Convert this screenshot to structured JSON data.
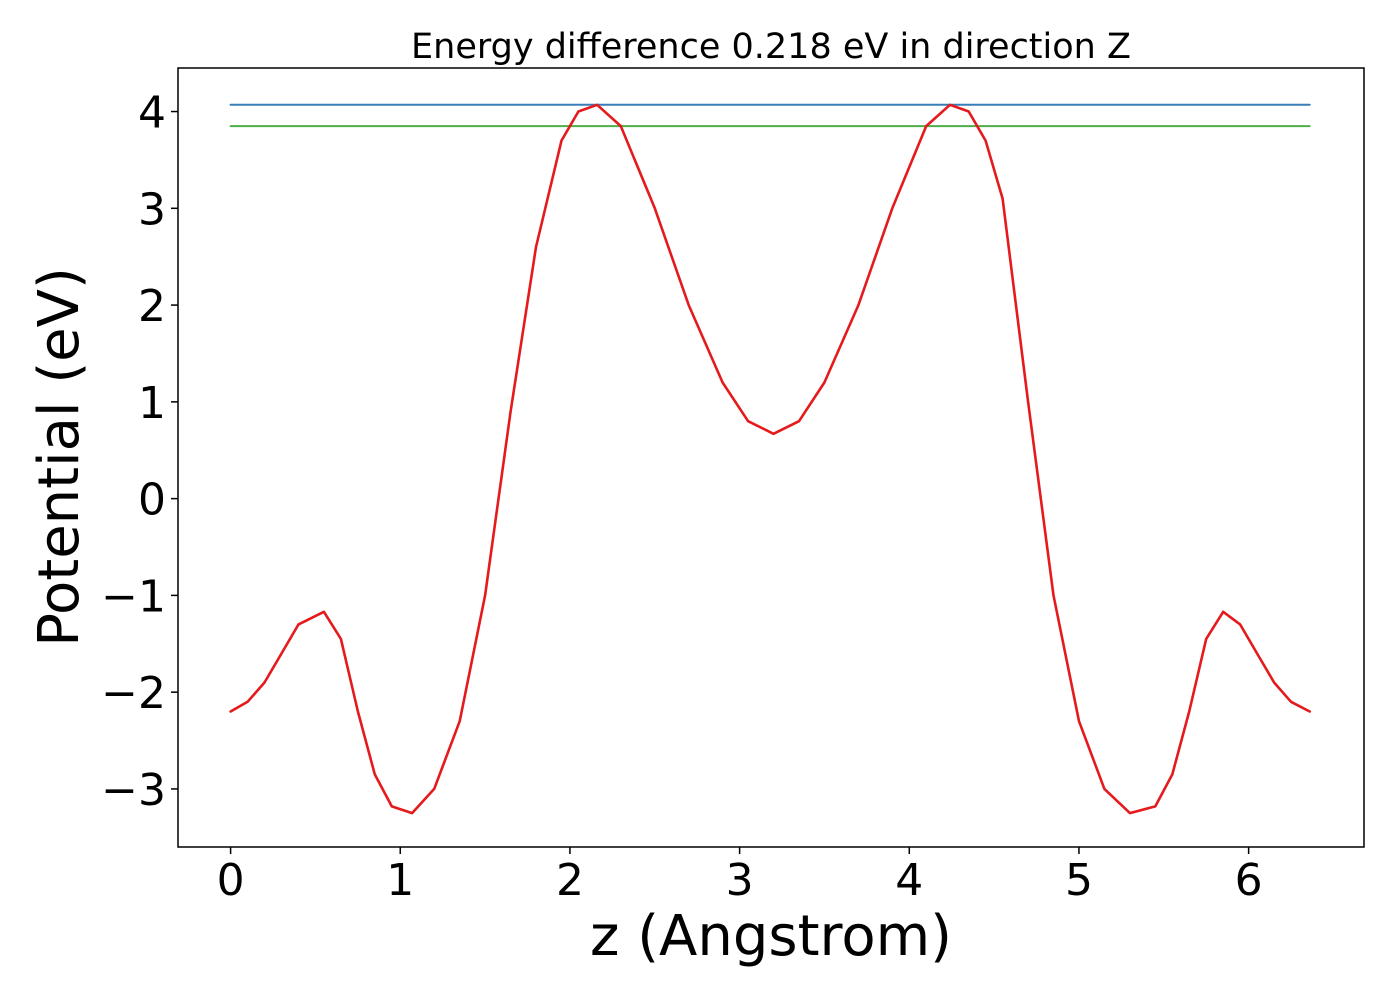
{
  "chart_data": {
    "type": "line",
    "title": "Energy difference 0.218 eV in direction Z",
    "xlabel": "z (Angstrom)",
    "ylabel": "Potential (eV)",
    "xlim": [
      -0.31,
      6.68
    ],
    "ylim": [
      -3.6,
      4.45
    ],
    "xticks": [
      0,
      1,
      2,
      3,
      4,
      5,
      6
    ],
    "xtick_labels": [
      "0",
      "1",
      "2",
      "3",
      "4",
      "5",
      "6"
    ],
    "yticks": [
      -3,
      -2,
      -1,
      0,
      1,
      2,
      3,
      4
    ],
    "ytick_labels": [
      "−3",
      "−2",
      "−1",
      "0",
      "1",
      "2",
      "3",
      "4"
    ],
    "grid": false,
    "colors": {
      "potential": "#e41a1c",
      "max_line": "#377eb8",
      "ref_line": "#4daf4a"
    },
    "series": [
      {
        "x": [
          0.0,
          0.1,
          0.2,
          0.3,
          0.4,
          0.55,
          0.65,
          0.75,
          0.85,
          0.95,
          1.07,
          1.2,
          1.35,
          1.5,
          1.65,
          1.8,
          1.95,
          2.05,
          2.16,
          2.3,
          2.5,
          2.7,
          2.9,
          3.05,
          3.2,
          3.35,
          3.5,
          3.7,
          3.9,
          4.1,
          4.24,
          4.35,
          4.45,
          4.55,
          4.7,
          4.85,
          5.0,
          5.15,
          5.3,
          5.45,
          5.55,
          5.65,
          5.75,
          5.85,
          5.95,
          6.05,
          6.15,
          6.25,
          6.36
        ],
        "y": [
          -2.2,
          -2.1,
          -1.9,
          -1.6,
          -1.3,
          -1.17,
          -1.45,
          -2.2,
          -2.85,
          -3.18,
          -3.25,
          -3.0,
          -2.3,
          -1.0,
          0.9,
          2.6,
          3.7,
          4.0,
          4.07,
          3.85,
          3.0,
          2.0,
          1.2,
          0.8,
          0.67,
          0.8,
          1.2,
          2.0,
          3.0,
          3.85,
          4.07,
          4.0,
          3.7,
          3.1,
          1.0,
          -1.0,
          -2.3,
          -3.0,
          -3.25,
          -3.18,
          -2.85,
          -2.2,
          -1.45,
          -1.17,
          -1.3,
          -1.6,
          -1.9,
          -2.1,
          -2.2
        ]
      },
      {
        "x": [
          0.0,
          6.36
        ],
        "y": [
          4.07,
          4.07
        ]
      },
      {
        "x": [
          0.0,
          6.36
        ],
        "y": [
          3.85,
          3.85
        ]
      }
    ]
  }
}
